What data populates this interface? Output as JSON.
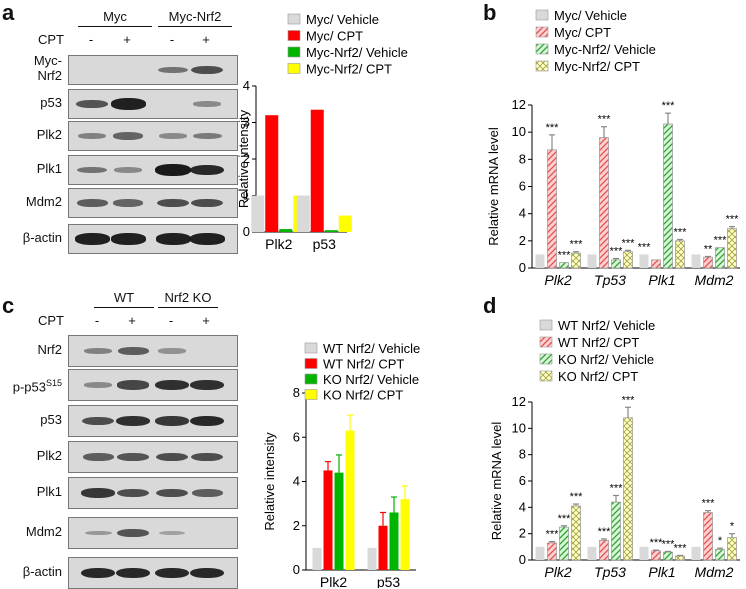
{
  "panels": {
    "a": "a",
    "b": "b",
    "c": "c",
    "d": "d"
  },
  "blot_a": {
    "groups": [
      "Myc",
      "Myc-Nrf2"
    ],
    "cpt_label": "CPT",
    "signs": [
      "-",
      "+",
      "-",
      "+"
    ],
    "rows": [
      "Myc-\nNrf2",
      "p53",
      "Plk2",
      "Plk1",
      "Mdm2",
      "β-actin"
    ]
  },
  "blot_c": {
    "groups": [
      "WT",
      "Nrf2 KO"
    ],
    "cpt_label": "CPT",
    "signs": [
      "-",
      "+",
      "-",
      "+"
    ],
    "rows": [
      "Nrf2",
      "p-p53",
      "p53",
      "Plk2",
      "Plk1",
      "Mdm2",
      "β-actin"
    ],
    "superscript": "S15"
  },
  "colors": {
    "gray": "#d9d9d9",
    "red": "#ff0000",
    "green": "#00b400",
    "yellow": "#ffff00",
    "pink": "#ffb3b3",
    "lgreen": "#b6f0b6",
    "lyellow": "#ffffb0"
  },
  "chart_data": [
    {
      "id": "a-chart",
      "type": "bar",
      "ylabel": "Relative intensity",
      "ylim": [
        0,
        4
      ],
      "yticks": [
        0,
        1,
        2,
        3,
        4
      ],
      "categories": [
        "Plk2",
        "p53"
      ],
      "legend_position": "top",
      "series": [
        {
          "name": "Myc/ Vehicle",
          "color": "#d9d9d9",
          "values": [
            1,
            1
          ]
        },
        {
          "name": "Myc/ CPT",
          "color": "#ff0000",
          "values": [
            3.2,
            3.35
          ]
        },
        {
          "name": "Myc-Nrf2/ Vehicle",
          "color": "#00b400",
          "values": [
            0.08,
            0.05
          ]
        },
        {
          "name": "Myc-Nrf2/ CPT",
          "color": "#ffff00",
          "values": [
            1.0,
            0.45
          ]
        }
      ]
    },
    {
      "id": "b-chart",
      "type": "bar",
      "ylabel": "Relative mRNA level",
      "ylim": [
        0,
        12
      ],
      "yticks": [
        0,
        2,
        4,
        6,
        8,
        10,
        12
      ],
      "categories": [
        "Plk2",
        "Tp53",
        "Plk1",
        "Mdm2"
      ],
      "legend_position": "top",
      "series": [
        {
          "name": "Myc/ Vehicle",
          "color": "#d9d9d9",
          "hatch": "none",
          "values": [
            1,
            1,
            1,
            1
          ],
          "errors": [
            0,
            0,
            0,
            0
          ],
          "stars": [
            "",
            "",
            "***",
            ""
          ]
        },
        {
          "name": "Myc/ CPT",
          "color": "#ffb3b3",
          "hatch": "red",
          "values": [
            8.7,
            9.6,
            0.6,
            0.8
          ],
          "errors": [
            1.1,
            0.8,
            0,
            0.05
          ],
          "stars": [
            "***",
            "***",
            "",
            "**"
          ]
        },
        {
          "name": "Myc-Nrf2/ Vehicle",
          "color": "#b6f0b6",
          "hatch": "green",
          "values": [
            0.4,
            0.6,
            10.6,
            1.5
          ],
          "errors": [
            0,
            0.1,
            0.8,
            0
          ],
          "stars": [
            "***",
            "***",
            "***",
            "***"
          ]
        },
        {
          "name": "Myc-Nrf2/ CPT",
          "color": "#ffffb0",
          "hatch": "cross",
          "values": [
            1.1,
            1.2,
            2.0,
            2.9
          ],
          "errors": [
            0.1,
            0.1,
            0.1,
            0.15
          ],
          "stars": [
            "***",
            "***",
            "***",
            "***"
          ]
        }
      ]
    },
    {
      "id": "c-chart",
      "type": "bar",
      "ylabel": "Relative intensity",
      "ylim": [
        0,
        8
      ],
      "yticks": [
        0,
        2,
        4,
        6,
        8
      ],
      "categories": [
        "Plk2",
        "p53"
      ],
      "legend_position": "top",
      "series": [
        {
          "name": "WT Nrf2/ Vehicle",
          "color": "#d9d9d9",
          "values": [
            1,
            1
          ],
          "errors": [
            0,
            0
          ]
        },
        {
          "name": "WT Nrf2/ CPT",
          "color": "#ff0000",
          "values": [
            4.5,
            2.0
          ],
          "errors": [
            0.4,
            0.6
          ]
        },
        {
          "name": "KO Nrf2/ Vehicle",
          "color": "#00b400",
          "values": [
            4.4,
            2.6
          ],
          "errors": [
            0.8,
            0.7
          ]
        },
        {
          "name": "KO Nrf2/ CPT",
          "color": "#ffff00",
          "values": [
            6.3,
            3.2
          ],
          "errors": [
            0.7,
            0.6
          ]
        }
      ]
    },
    {
      "id": "d-chart",
      "type": "bar",
      "ylabel": "Relative mRNA level",
      "ylim": [
        0,
        12
      ],
      "yticks": [
        0,
        2,
        4,
        6,
        8,
        10,
        12
      ],
      "categories": [
        "Plk2",
        "Tp53",
        "Plk1",
        "Mdm2"
      ],
      "legend_position": "top",
      "series": [
        {
          "name": "WT Nrf2/ Vehicle",
          "color": "#d9d9d9",
          "hatch": "none",
          "values": [
            1,
            1,
            1,
            1
          ],
          "errors": [
            0,
            0,
            0,
            0
          ],
          "stars": [
            "",
            "",
            "",
            ""
          ]
        },
        {
          "name": "WT Nrf2/ CPT",
          "color": "#ffb3b3",
          "hatch": "red",
          "values": [
            1.3,
            1.5,
            0.7,
            3.6
          ],
          "errors": [
            0.1,
            0.1,
            0.05,
            0.15
          ],
          "stars": [
            "***",
            "***",
            "***",
            "***"
          ]
        },
        {
          "name": "KO Nrf2/ Vehicle",
          "color": "#b6f0b6",
          "hatch": "green",
          "values": [
            2.5,
            4.4,
            0.6,
            0.8
          ],
          "errors": [
            0.1,
            0.5,
            0.05,
            0.1
          ],
          "stars": [
            "***",
            "***",
            "***",
            "*"
          ]
        },
        {
          "name": "KO Nrf2/ CPT",
          "color": "#ffffb0",
          "hatch": "cross",
          "values": [
            4.1,
            10.8,
            0.3,
            1.7
          ],
          "errors": [
            0.15,
            0.8,
            0.05,
            0.3
          ],
          "stars": [
            "***",
            "***",
            "***",
            "*"
          ]
        }
      ]
    }
  ]
}
